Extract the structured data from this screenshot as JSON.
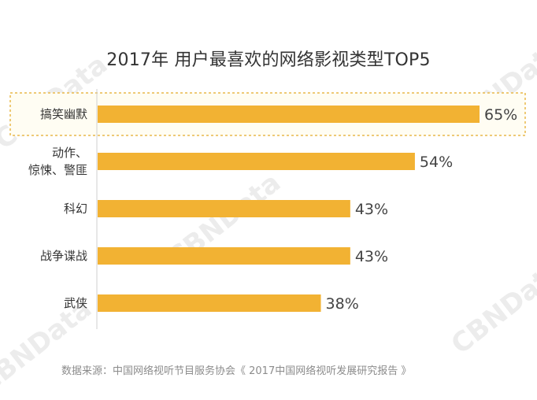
{
  "watermark_text": "CBNData",
  "chart_data": {
    "type": "bar",
    "orientation": "horizontal",
    "title": "2017年 用户最喜欢的网络影视类型TOP5",
    "categories": [
      [
        "搞笑幽默"
      ],
      [
        "动作、",
        "惊悚、警匪"
      ],
      [
        "科幻"
      ],
      [
        "战争谍战"
      ],
      [
        "武侠"
      ]
    ],
    "values": [
      65,
      54,
      43,
      43,
      38
    ],
    "value_labels": [
      "65%",
      "54%",
      "43%",
      "43%",
      "38%"
    ],
    "unit": "%",
    "highlighted_category_index": 0,
    "bar_color": "#F2B233",
    "axis_color": "#CFCFCF",
    "highlight_border_color": "#E8B84A",
    "highlight_fill_color": "#FFFDF3",
    "grid": false
  },
  "source": "数据来源：中国网络视听节目服务协会《 2017中国网络视听发展研究报告 》"
}
